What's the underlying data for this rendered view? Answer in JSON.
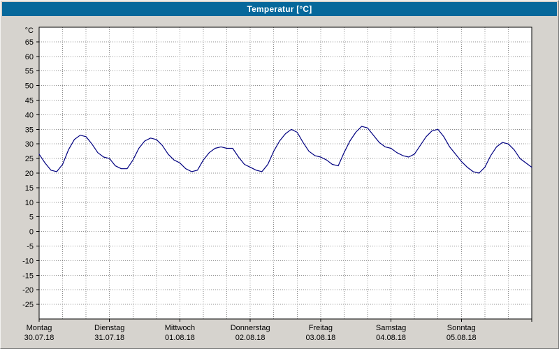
{
  "window": {
    "title": "Temperatur [°C]"
  },
  "colors": {
    "titlebar_bg": "#06689b",
    "titlebar_text": "#ffffff",
    "window_bg": "#d6d3ce",
    "plot_bg": "#ffffff",
    "grid": "#8c8c8c",
    "axis": "#000000",
    "label_text": "#000000",
    "line": "#000080"
  },
  "chart_data": {
    "type": "line",
    "title": "Temperatur [°C]",
    "ylabel": "°C",
    "xlabel": "",
    "ylim": [
      -30,
      70
    ],
    "ytick_min": -25,
    "ytick_max": 65,
    "ytick_step": 5,
    "x_unit": "hours",
    "xlim": [
      0,
      168
    ],
    "x_gridline_every_hours": 8,
    "grid": "dotted",
    "legend": "none",
    "days": [
      {
        "name": "Montag",
        "date": "30.07.18",
        "t": 0
      },
      {
        "name": "Dienstag",
        "date": "31.07.18",
        "t": 24
      },
      {
        "name": "Mittwoch",
        "date": "01.08.18",
        "t": 48
      },
      {
        "name": "Donnerstag",
        "date": "02.08.18",
        "t": 72
      },
      {
        "name": "Freitag",
        "date": "03.08.18",
        "t": 96
      },
      {
        "name": "Samstag",
        "date": "04.08.18",
        "t": 120
      },
      {
        "name": "Sonntag",
        "date": "05.08.18",
        "t": 144
      }
    ],
    "series": [
      {
        "name": "Temperatur",
        "color": "#000080",
        "points": [
          [
            0,
            26.5
          ],
          [
            2,
            23.5
          ],
          [
            4,
            21
          ],
          [
            6,
            20.5
          ],
          [
            8,
            23
          ],
          [
            10,
            28
          ],
          [
            12,
            31.5
          ],
          [
            14,
            33
          ],
          [
            16,
            32.5
          ],
          [
            18,
            30
          ],
          [
            20,
            27
          ],
          [
            22,
            25.5
          ],
          [
            24,
            25
          ],
          [
            26,
            22.5
          ],
          [
            28,
            21.5
          ],
          [
            30,
            21.5
          ],
          [
            32,
            24.5
          ],
          [
            34,
            28.5
          ],
          [
            36,
            31
          ],
          [
            38,
            32
          ],
          [
            40,
            31.5
          ],
          [
            42,
            29.5
          ],
          [
            44,
            26.5
          ],
          [
            46,
            24.5
          ],
          [
            48,
            23.5
          ],
          [
            50,
            21.5
          ],
          [
            52,
            20.5
          ],
          [
            54,
            21
          ],
          [
            56,
            24.5
          ],
          [
            58,
            27
          ],
          [
            60,
            28.5
          ],
          [
            62,
            29
          ],
          [
            64,
            28.5
          ],
          [
            66,
            28.5
          ],
          [
            68,
            25.5
          ],
          [
            70,
            23
          ],
          [
            72,
            22
          ],
          [
            74,
            21
          ],
          [
            76,
            20.5
          ],
          [
            78,
            23
          ],
          [
            80,
            27.5
          ],
          [
            82,
            31
          ],
          [
            84,
            33.5
          ],
          [
            86,
            35
          ],
          [
            88,
            34
          ],
          [
            90,
            30.5
          ],
          [
            92,
            27.5
          ],
          [
            94,
            26
          ],
          [
            96,
            25.5
          ],
          [
            98,
            24.5
          ],
          [
            100,
            23
          ],
          [
            102,
            22.5
          ],
          [
            104,
            27
          ],
          [
            106,
            31
          ],
          [
            108,
            34
          ],
          [
            110,
            36
          ],
          [
            112,
            35.5
          ],
          [
            114,
            33
          ],
          [
            116,
            30.5
          ],
          [
            118,
            29
          ],
          [
            120,
            28.5
          ],
          [
            122,
            27
          ],
          [
            124,
            26
          ],
          [
            126,
            25.5
          ],
          [
            128,
            26.5
          ],
          [
            130,
            29.5
          ],
          [
            132,
            32.5
          ],
          [
            134,
            34.5
          ],
          [
            136,
            35
          ],
          [
            138,
            32.5
          ],
          [
            140,
            29
          ],
          [
            142,
            26.5
          ],
          [
            144,
            24
          ],
          [
            146,
            22
          ],
          [
            148,
            20.5
          ],
          [
            150,
            20
          ],
          [
            152,
            22
          ],
          [
            154,
            26
          ],
          [
            156,
            29
          ],
          [
            158,
            30.5
          ],
          [
            160,
            30
          ],
          [
            162,
            28
          ],
          [
            164,
            25
          ],
          [
            166,
            23.5
          ],
          [
            168,
            22
          ]
        ]
      }
    ]
  }
}
